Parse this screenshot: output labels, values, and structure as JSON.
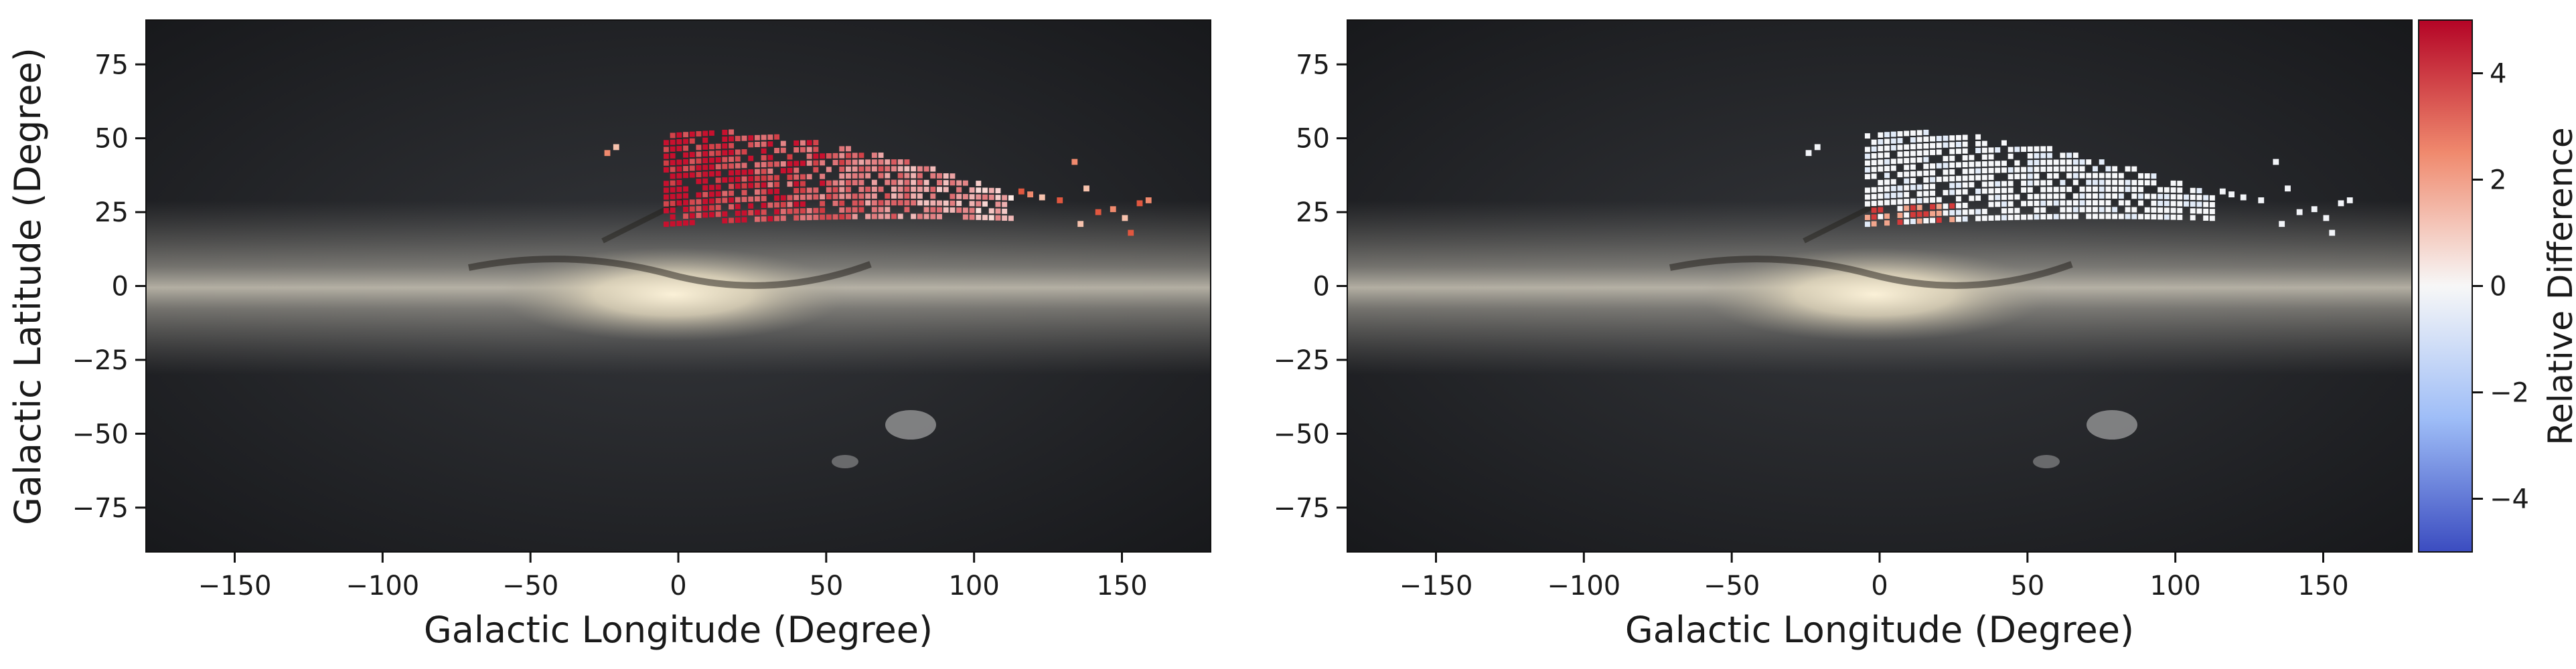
{
  "chart_data": [
    {
      "type": "heatmap",
      "panel": "left",
      "background": "galactic sky map (Milky Way)",
      "xlabel": "Galactic Longitude (Degree)",
      "ylabel": "Galactic Latitude (Degree)",
      "xlim": [
        -180,
        180
      ],
      "ylim": [
        -90,
        90
      ],
      "xticks": [
        -150,
        -100,
        -50,
        0,
        50,
        100,
        150
      ],
      "xtick_labels": [
        "−150",
        "−100",
        "−50",
        "0",
        "50",
        "100",
        "150"
      ],
      "yticks": [
        75,
        50,
        25,
        0,
        -25,
        -50,
        -75
      ],
      "ytick_labels": [
        "75",
        "50",
        "25",
        "0",
        "−25",
        "−50",
        "−75"
      ],
      "pattern": "mostly_high",
      "description_values": "tiles cover l≈-20..160, b≈15..55; relative difference mostly high (red) toward low longitude"
    },
    {
      "type": "heatmap",
      "panel": "right",
      "background": "galactic sky map (Milky Way)",
      "xlabel": "Galactic Longitude (Degree)",
      "ylabel": "",
      "xlim": [
        -180,
        180
      ],
      "ylim": [
        -90,
        90
      ],
      "xticks": [
        -150,
        -100,
        -50,
        0,
        50,
        100,
        150
      ],
      "xtick_labels": [
        "−150",
        "−100",
        "−50",
        "0",
        "50",
        "100",
        "150"
      ],
      "yticks": [
        75,
        50,
        25,
        0,
        -25,
        -50,
        -75
      ],
      "ytick_labels": [
        "75",
        "50",
        "25",
        "0",
        "−25",
        "−50",
        "−75"
      ],
      "pattern": "mostly_zero",
      "colorbar": {
        "label": "Relative Difference",
        "range": [
          -5,
          5
        ],
        "colormap": "coolwarm",
        "ticks": [
          4,
          2,
          0,
          -2,
          -4
        ],
        "tick_labels": [
          "4",
          "2",
          "0",
          "−2",
          "−4"
        ]
      }
    }
  ],
  "colors": {
    "sky_dark": "#1c1c1f",
    "band_light": "#d9d4c6",
    "core": "#f3ead2",
    "high": "#c8102e",
    "zero": "#f7f7f7",
    "low": "#3b4cc0"
  }
}
